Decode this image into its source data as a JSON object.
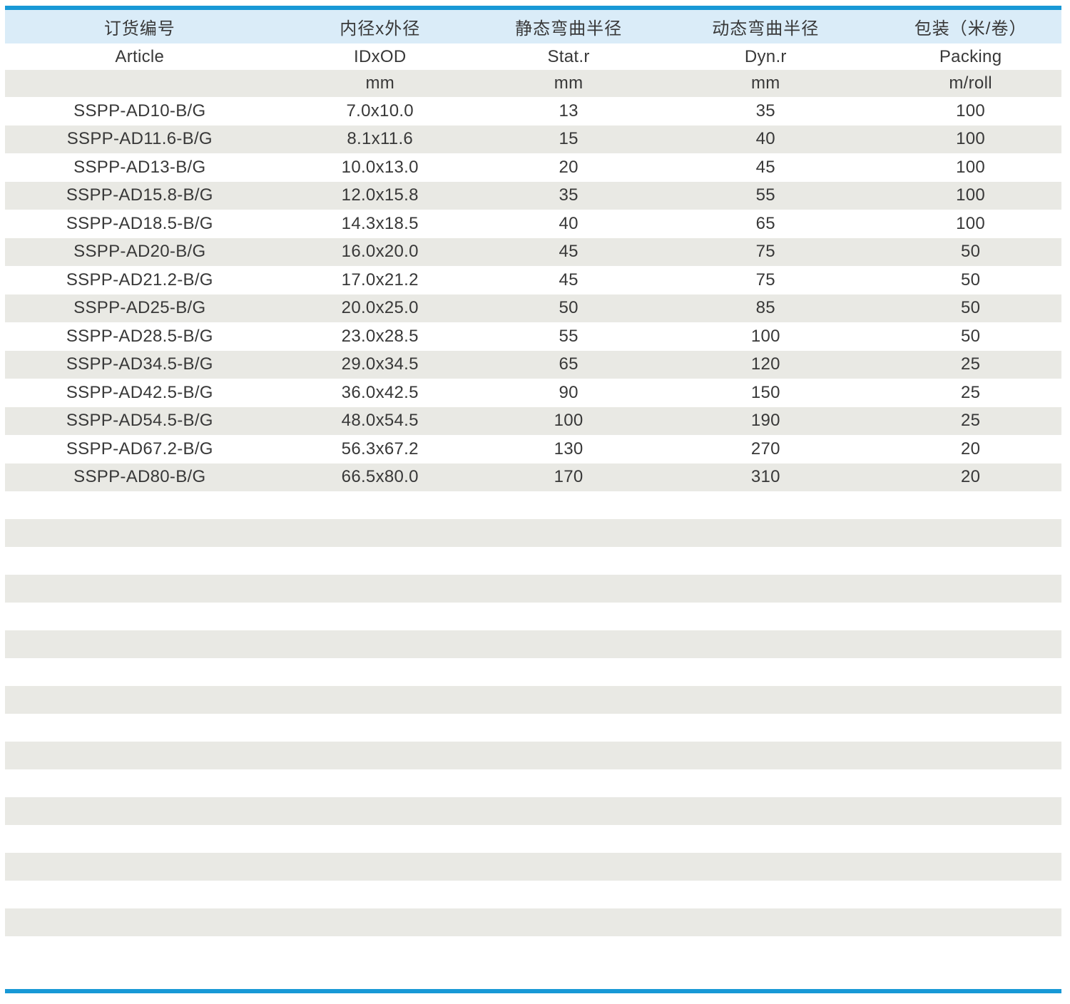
{
  "theme": {
    "accent_blue": "#1899D6",
    "header_blue_bg": "#DAECF8",
    "stripe_gray": "#E9E9E4",
    "text_color": "#383838"
  },
  "table": {
    "columns": [
      {
        "zh": "订货编号",
        "en": "Article",
        "unit": ""
      },
      {
        "zh": "内径x外径",
        "en": "IDxOD",
        "unit": "mm"
      },
      {
        "zh": "静态弯曲半径",
        "en": "Stat.r",
        "unit": "mm"
      },
      {
        "zh": "动态弯曲半径",
        "en": "Dyn.r",
        "unit": "mm"
      },
      {
        "zh": "包装（米/卷）",
        "en": "Packing",
        "unit": "m/roll"
      }
    ],
    "rows": [
      [
        "SSPP-AD10-B/G",
        "7.0x10.0",
        "13",
        "35",
        "100"
      ],
      [
        "SSPP-AD11.6-B/G",
        "8.1x11.6",
        "15",
        "40",
        "100"
      ],
      [
        "SSPP-AD13-B/G",
        "10.0x13.0",
        "20",
        "45",
        "100"
      ],
      [
        "SSPP-AD15.8-B/G",
        "12.0x15.8",
        "35",
        "55",
        "100"
      ],
      [
        "SSPP-AD18.5-B/G",
        "14.3x18.5",
        "40",
        "65",
        "100"
      ],
      [
        "SSPP-AD20-B/G",
        "16.0x20.0",
        "45",
        "75",
        "50"
      ],
      [
        "SSPP-AD21.2-B/G",
        "17.0x21.2",
        "45",
        "75",
        "50"
      ],
      [
        "SSPP-AD25-B/G",
        "20.0x25.0",
        "50",
        "85",
        "50"
      ],
      [
        "SSPP-AD28.5-B/G",
        "23.0x28.5",
        "55",
        "100",
        "50"
      ],
      [
        "SSPP-AD34.5-B/G",
        "29.0x34.5",
        "65",
        "120",
        "25"
      ],
      [
        "SSPP-AD42.5-B/G",
        "36.0x42.5",
        "90",
        "150",
        "25"
      ],
      [
        "SSPP-AD54.5-B/G",
        "48.0x54.5",
        "100",
        "190",
        "25"
      ],
      [
        "SSPP-AD67.2-B/G",
        "56.3x67.2",
        "130",
        "270",
        "20"
      ],
      [
        "SSPP-AD80-B/G",
        "66.5x80.0",
        "170",
        "310",
        "20"
      ]
    ],
    "empty_row_count": 16
  }
}
